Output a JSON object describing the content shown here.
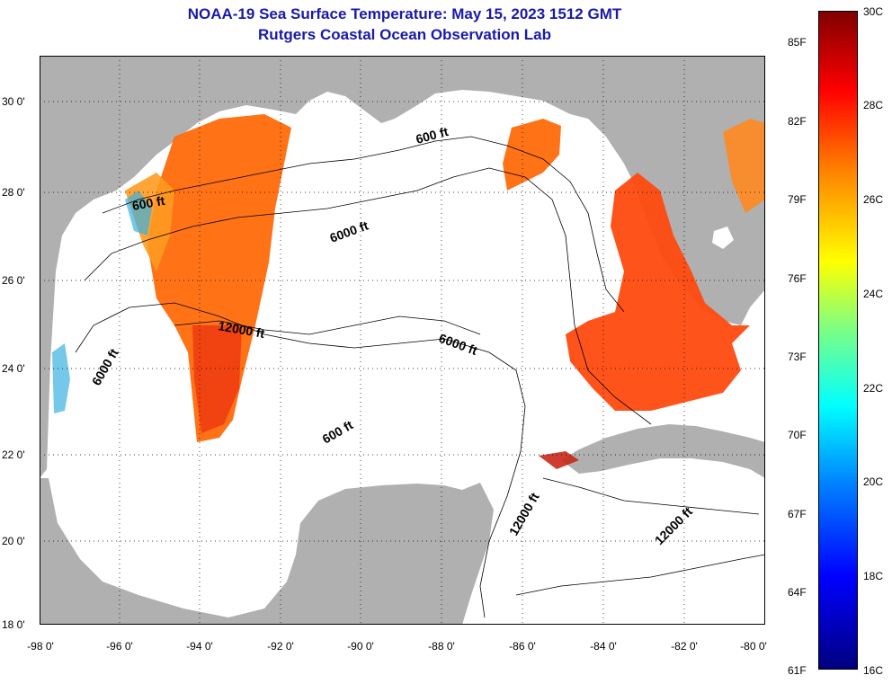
{
  "title_line1": "NOAA-19 Sea Surface Temperature:  May 15, 2023 1512 GMT",
  "title_line2": "Rutgers Coastal Ocean Observation Lab",
  "lat_ticks": [
    "30 0'",
    "28 0'",
    "26 0'",
    "24 0'",
    "22 0'",
    "20 0'",
    "18 0'"
  ],
  "lon_ticks": [
    "-98 0'",
    "-96 0'",
    "-94 0'",
    "-92 0'",
    "-90 0'",
    "-88 0'",
    "-86 0'",
    "-84 0'",
    "-82 0'",
    "-80 0'"
  ],
  "contour_labels": {
    "c600_nw": "600 ft",
    "c600_ne": "600 ft",
    "c600_s": "600 ft",
    "c6000_n": "6000 ft",
    "c6000_e": "6000 ft",
    "c6000_w": "6000 ft",
    "c12000_c": "12000 ft",
    "c12000_se": "12000 ft",
    "c12000_e": "12000 ft"
  },
  "colorbar": {
    "fahrenheit": [
      "85F",
      "82F",
      "79F",
      "76F",
      "73F",
      "70F",
      "67F",
      "64F",
      "61F"
    ],
    "celsius": [
      "30C",
      "28C",
      "26C",
      "24C",
      "22C",
      "20C",
      "18C",
      "16C"
    ]
  },
  "colors": {
    "title": "#1a1aa8",
    "land": "#b0b0b0",
    "water": "#ffffff",
    "sst_warm": "#ff5a0a",
    "sst_hot": "#ee2a10"
  }
}
